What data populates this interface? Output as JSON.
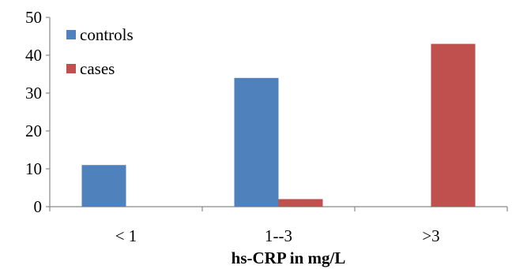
{
  "chart_data": {
    "type": "bar",
    "categories": [
      "< 1",
      "1--3",
      ">3"
    ],
    "series": [
      {
        "name": "controls",
        "values": [
          11,
          34,
          0
        ],
        "color": "#4F81BD"
      },
      {
        "name": "cases",
        "values": [
          0,
          2,
          43
        ],
        "color": "#C0504D"
      }
    ],
    "xlabel": "hs-CRP in mg/L",
    "ylabel": "",
    "ylim": [
      0,
      50
    ],
    "yticks": [
      0,
      10,
      20,
      30,
      40,
      50
    ],
    "grid": false,
    "legend_position": "top-left"
  }
}
